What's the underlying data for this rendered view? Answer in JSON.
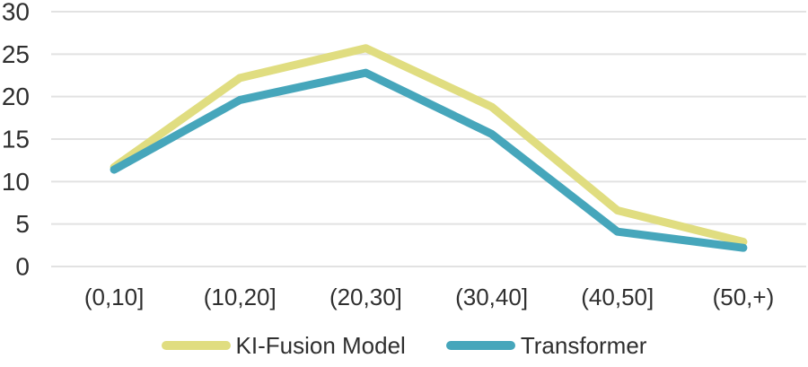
{
  "chart_data": {
    "type": "line",
    "title": "",
    "xlabel": "",
    "ylabel": "",
    "categories": [
      "(0,10]",
      "(10,20]",
      "(20,30]",
      "(30,40]",
      "(40,50]",
      "(50,+)"
    ],
    "series": [
      {
        "name": "KI-Fusion Model",
        "color": "#e0dd80",
        "values": [
          11.7,
          22.2,
          25.7,
          18.8,
          6.6,
          2.9
        ]
      },
      {
        "name": "Transformer",
        "color": "#46a6bb",
        "values": [
          11.4,
          19.6,
          22.8,
          15.6,
          4.1,
          2.2
        ]
      }
    ],
    "yticks": [
      0,
      5,
      10,
      15,
      20,
      25,
      30
    ],
    "ylim": [
      0,
      30
    ],
    "grid": true,
    "legend_position": "bottom",
    "gridline_color": "#e2e2e2",
    "text_color": "#2f2f2f"
  }
}
